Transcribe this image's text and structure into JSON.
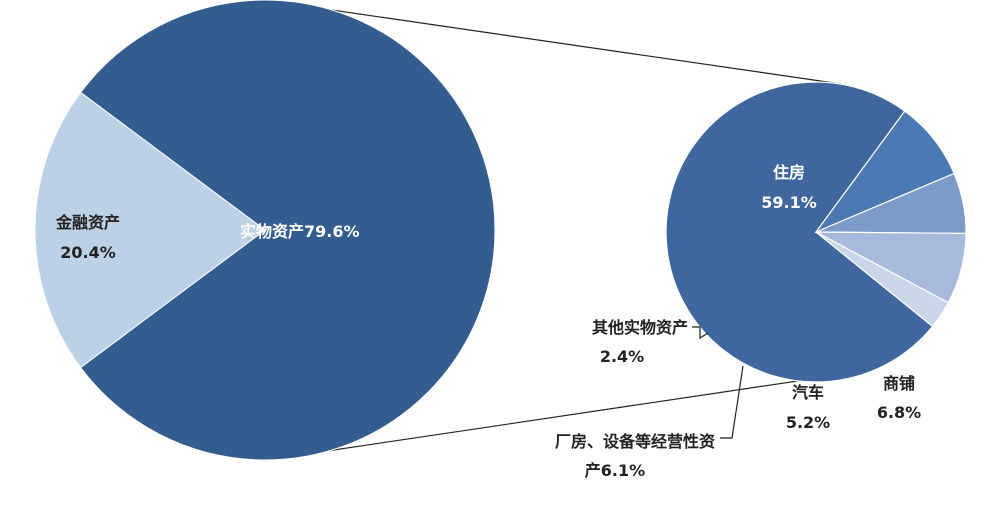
{
  "chart_data": [
    {
      "type": "pie",
      "slices": [
        {
          "name": "实物资产",
          "value": 79.6,
          "label": "实物资产79.6%",
          "color": "#335d8f"
        },
        {
          "name": "金融资产",
          "value": 20.4,
          "label_name": "金融资产",
          "label_value": "20.4%",
          "color": "#bcd0e6"
        }
      ]
    },
    {
      "type": "pie",
      "slices": [
        {
          "name": "住房",
          "value": 59.1,
          "label_name": "住房",
          "label_value": "59.1%",
          "color": "#3f669d"
        },
        {
          "name": "商铺",
          "value": 6.8,
          "label_name": "商铺",
          "label_value": "6.8%",
          "color": "#4a79b3"
        },
        {
          "name": "汽车",
          "value": 5.2,
          "label_name": "汽车",
          "label_value": "5.2%",
          "color": "#7d9bc9"
        },
        {
          "name": "厂房、设备等经营性资产",
          "value": 6.1,
          "label_line1": "厂房、设备等经营性资",
          "label_line2": "产6.1%",
          "color": "#a7badb"
        },
        {
          "name": "其他实物资产",
          "value": 2.4,
          "label_name": "其他实物资产",
          "label_value": "2.4%",
          "color": "#c9d5e8"
        }
      ]
    }
  ],
  "colors": {
    "connector": "#222222",
    "slice_border": "#ffffff"
  }
}
